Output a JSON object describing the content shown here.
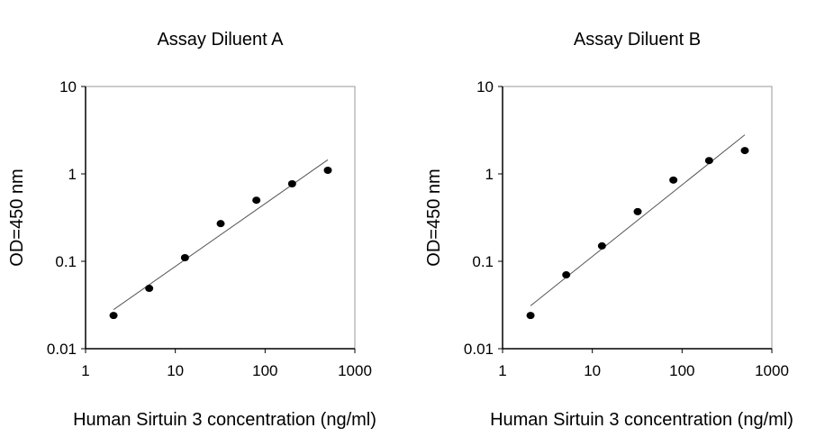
{
  "chart_data": [
    {
      "type": "scatter",
      "title": "Assay Diluent A",
      "xlabel": "Human Sirtuin 3 concentration (ng/ml)",
      "ylabel": "OD=450 nm",
      "xscale": "log",
      "yscale": "log",
      "xlim": [
        1,
        1000
      ],
      "ylim": [
        0.01,
        10
      ],
      "xticks": [
        "1",
        "10",
        "100",
        "1000"
      ],
      "yticks": [
        "0.01",
        "0.1",
        "1",
        "10"
      ],
      "grid": false,
      "x": [
        2.05,
        5.12,
        12.8,
        32,
        80,
        200,
        500
      ],
      "y": [
        0.024,
        0.049,
        0.11,
        0.27,
        0.5,
        0.77,
        1.1
      ],
      "fit_line": {
        "x": [
          2.05,
          500
        ],
        "y": [
          0.028,
          1.45
        ]
      }
    },
    {
      "type": "scatter",
      "title": "Assay Diluent B",
      "xlabel": "Human Sirtuin 3 concentration (ng/ml)",
      "ylabel": "OD=450 nm",
      "xscale": "log",
      "yscale": "log",
      "xlim": [
        1,
        1000
      ],
      "ylim": [
        0.01,
        10
      ],
      "xticks": [
        "1",
        "10",
        "100",
        "1000"
      ],
      "yticks": [
        "0.01",
        "0.1",
        "1",
        "10"
      ],
      "grid": false,
      "x": [
        2.05,
        5.12,
        12.8,
        32,
        80,
        200,
        500
      ],
      "y": [
        0.024,
        0.07,
        0.15,
        0.37,
        0.85,
        1.42,
        1.85
      ],
      "fit_line": {
        "x": [
          2.05,
          500
        ],
        "y": [
          0.031,
          2.8
        ]
      }
    }
  ]
}
